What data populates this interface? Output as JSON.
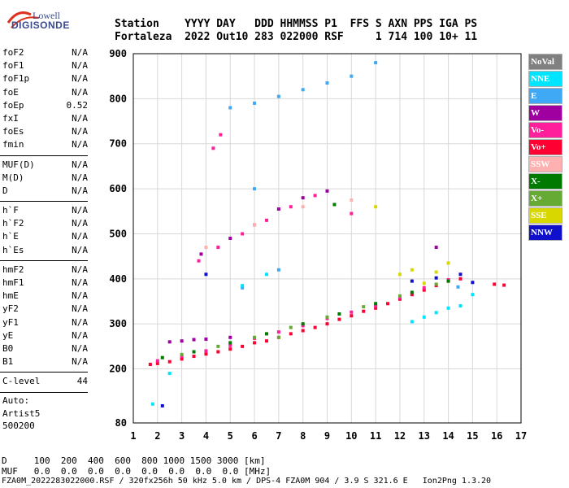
{
  "logo": {
    "line1": "Lowell",
    "line2": "DIGISONDE"
  },
  "header": {
    "line1": "Station    YYYY DAY   DDD HHMMSS P1  FFS S AXN PPS IGA PS",
    "line2": "Fortaleza  2022 Out10 283 022000 RSF     1 714 100 10+ 11"
  },
  "params_group1": [
    {
      "label": "foF2",
      "value": "N/A"
    },
    {
      "label": "foF1",
      "value": "N/A"
    },
    {
      "label": "foF1p",
      "value": "N/A"
    },
    {
      "label": "foE",
      "value": "N/A"
    },
    {
      "label": "foEp",
      "value": "0.52"
    },
    {
      "label": "fxI",
      "value": "N/A"
    },
    {
      "label": "foEs",
      "value": "N/A"
    },
    {
      "label": "fmin",
      "value": "N/A"
    }
  ],
  "params_group2": [
    {
      "label": "MUF(D)",
      "value": "N/A"
    },
    {
      "label": "M(D)",
      "value": "N/A"
    },
    {
      "label": "D",
      "value": "N/A"
    }
  ],
  "params_group3": [
    {
      "label": "h`F",
      "value": "N/A"
    },
    {
      "label": "h`F2",
      "value": "N/A"
    },
    {
      "label": "h`E",
      "value": "N/A"
    },
    {
      "label": "h`Es",
      "value": "N/A"
    }
  ],
  "params_group4": [
    {
      "label": "hmF2",
      "value": "N/A"
    },
    {
      "label": "hmF1",
      "value": "N/A"
    },
    {
      "label": "hmE",
      "value": "N/A"
    },
    {
      "label": "yF2",
      "value": "N/A"
    },
    {
      "label": "yF1",
      "value": "N/A"
    },
    {
      "label": "yE",
      "value": "N/A"
    },
    {
      "label": "B0",
      "value": "N/A"
    },
    {
      "label": "B1",
      "value": "N/A"
    }
  ],
  "params_group5": [
    {
      "label": "C-level",
      "value": "44"
    }
  ],
  "auto": {
    "line1": "Auto:",
    "line2": "Artist5",
    "line3": "500200"
  },
  "legend": [
    {
      "label": "NoVal",
      "color": "#808080"
    },
    {
      "label": "NNE",
      "color": "#00e5ff"
    },
    {
      "label": "E",
      "color": "#3fa9f5"
    },
    {
      "label": "W",
      "color": "#a000a0"
    },
    {
      "label": "Vo-",
      "color": "#ff1f9a"
    },
    {
      "label": "Vo+",
      "color": "#ff0033"
    },
    {
      "label": "SSW",
      "color": "#ffb0b0"
    },
    {
      "label": "X-",
      "color": "#007a00"
    },
    {
      "label": "X+",
      "color": "#66aa33"
    },
    {
      "label": "SSE",
      "color": "#d8d800"
    },
    {
      "label": "NNW",
      "color": "#1010cc"
    }
  ],
  "bottom": {
    "d_line": "D     100  200  400  600  800 1000 1500 3000 [km]",
    "muf_line": "MUF   0.0  0.0  0.0  0.0  0.0  0.0  0.0  0.0 [MHz]"
  },
  "footer": "FZA0M_2022283022000.RSF / 320fx256h 50 kHz 5.0 km / DPS-4 FZA0M 904 / 3.9 S 321.6 E   Ion2Png 1.3.20",
  "chart_data": {
    "type": "scatter",
    "xlim": [
      1,
      17
    ],
    "ylim": [
      80,
      900
    ],
    "xticks": [
      1,
      2,
      3,
      4,
      5,
      6,
      7,
      8,
      9,
      10,
      11,
      12,
      13,
      14,
      15,
      16,
      17
    ],
    "yticks": [
      80,
      200,
      300,
      400,
      500,
      600,
      700,
      800,
      900
    ],
    "grid": true,
    "series": [
      {
        "name": "Vo+",
        "color": "#ff0033",
        "points": [
          [
            1.7,
            210
          ],
          [
            2,
            212
          ],
          [
            2.5,
            216
          ],
          [
            3,
            222
          ],
          [
            3.5,
            228
          ],
          [
            4,
            233
          ],
          [
            4.5,
            238
          ],
          [
            5,
            244
          ],
          [
            5.5,
            250
          ],
          [
            6,
            258
          ],
          [
            6.5,
            262
          ],
          [
            7,
            270
          ],
          [
            7.5,
            278
          ],
          [
            8,
            285
          ],
          [
            8.5,
            292
          ],
          [
            9,
            300
          ],
          [
            9.5,
            310
          ],
          [
            10,
            318
          ],
          [
            10.5,
            328
          ],
          [
            11,
            335
          ],
          [
            11.5,
            345
          ],
          [
            12,
            355
          ],
          [
            12.5,
            365
          ],
          [
            13,
            375
          ],
          [
            13.5,
            385
          ],
          [
            14,
            395
          ],
          [
            14.5,
            400
          ],
          [
            15.9,
            388
          ],
          [
            16.3,
            386
          ]
        ]
      },
      {
        "name": "Vo-",
        "color": "#ff1f9a",
        "points": [
          [
            2,
            218
          ],
          [
            3,
            228
          ],
          [
            4,
            240
          ],
          [
            5,
            252
          ],
          [
            6,
            268
          ],
          [
            7,
            282
          ],
          [
            8,
            296
          ],
          [
            9,
            312
          ],
          [
            10,
            326
          ],
          [
            11,
            340
          ],
          [
            12,
            358
          ],
          [
            13,
            380
          ],
          [
            14,
            398
          ],
          [
            3.7,
            440
          ],
          [
            4.5,
            470
          ],
          [
            5.5,
            500
          ],
          [
            6.5,
            530
          ],
          [
            7.5,
            560
          ],
          [
            8.5,
            585
          ],
          [
            4.3,
            690
          ],
          [
            4.6,
            720
          ],
          [
            10,
            545
          ]
        ]
      },
      {
        "name": "W",
        "color": "#a000a0",
        "points": [
          [
            2.5,
            260
          ],
          [
            3,
            262
          ],
          [
            3.5,
            265
          ],
          [
            4,
            266
          ],
          [
            5,
            270
          ],
          [
            3.8,
            455
          ],
          [
            5,
            490
          ],
          [
            6,
            520
          ],
          [
            7,
            555
          ],
          [
            8,
            580
          ],
          [
            9,
            595
          ],
          [
            13.5,
            470
          ]
        ]
      },
      {
        "name": "X-",
        "color": "#007a00",
        "points": [
          [
            2.2,
            225
          ],
          [
            3.5,
            238
          ],
          [
            5,
            258
          ],
          [
            6.5,
            278
          ],
          [
            8,
            300
          ],
          [
            9.5,
            322
          ],
          [
            11,
            345
          ],
          [
            12.5,
            370
          ],
          [
            14,
            395
          ],
          [
            9.3,
            565
          ]
        ]
      },
      {
        "name": "X+",
        "color": "#66aa33",
        "points": [
          [
            3,
            232
          ],
          [
            4.5,
            250
          ],
          [
            6,
            270
          ],
          [
            7.5,
            292
          ],
          [
            9,
            315
          ],
          [
            10.5,
            338
          ],
          [
            12,
            362
          ],
          [
            13.5,
            388
          ],
          [
            7,
            270
          ]
        ]
      },
      {
        "name": "E",
        "color": "#3fa9f5",
        "points": [
          [
            5,
            780
          ],
          [
            6,
            790
          ],
          [
            7,
            805
          ],
          [
            8,
            820
          ],
          [
            9,
            835
          ],
          [
            10,
            850
          ],
          [
            11,
            880
          ],
          [
            6,
            600
          ],
          [
            5.5,
            380
          ],
          [
            7,
            420
          ],
          [
            14.4,
            382
          ]
        ]
      },
      {
        "name": "NNE",
        "color": "#00e5ff",
        "points": [
          [
            12.5,
            305
          ],
          [
            13,
            315
          ],
          [
            13.5,
            325
          ],
          [
            14,
            335
          ],
          [
            14.5,
            340
          ],
          [
            15,
            365
          ],
          [
            5.5,
            385
          ],
          [
            6.5,
            410
          ],
          [
            2.5,
            190
          ],
          [
            1.8,
            122
          ]
        ]
      },
      {
        "name": "SSE",
        "color": "#d8d800",
        "points": [
          [
            12,
            410
          ],
          [
            12.5,
            420
          ],
          [
            13,
            390
          ],
          [
            13.5,
            415
          ],
          [
            14,
            435
          ],
          [
            11,
            560
          ]
        ]
      },
      {
        "name": "SSW",
        "color": "#ffb0b0",
        "points": [
          [
            4,
            470
          ],
          [
            6,
            520
          ],
          [
            8,
            560
          ],
          [
            10,
            575
          ]
        ]
      },
      {
        "name": "NNW",
        "color": "#1010cc",
        "points": [
          [
            12.5,
            395
          ],
          [
            13.5,
            402
          ],
          [
            14.5,
            410
          ],
          [
            15,
            392
          ],
          [
            4,
            410
          ],
          [
            2.2,
            118
          ]
        ]
      }
    ]
  }
}
